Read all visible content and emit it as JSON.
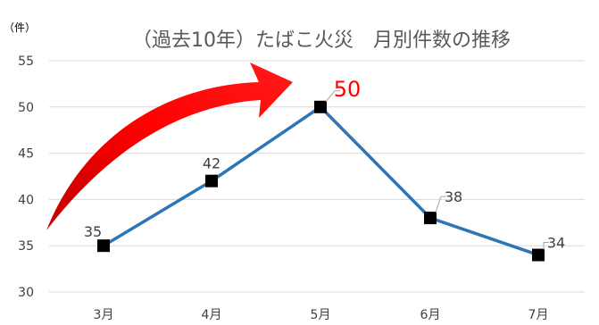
{
  "chart_data": {
    "type": "line",
    "title": "（過去10年）たばこ火災　月別件数の推移",
    "unit_label": "（件）",
    "categories": [
      "3月",
      "4月",
      "5月",
      "6月",
      "7月"
    ],
    "values": [
      35,
      42,
      50,
      38,
      34
    ],
    "ylim": [
      30,
      55
    ],
    "yticks": [
      30,
      35,
      40,
      45,
      50,
      55
    ],
    "highlight_index": 2,
    "grid": true,
    "legend": "none",
    "colors": {
      "line": "#2e75b6",
      "marker": "#000000",
      "highlight": "#ff0000",
      "arrow": "#ff0000"
    }
  }
}
